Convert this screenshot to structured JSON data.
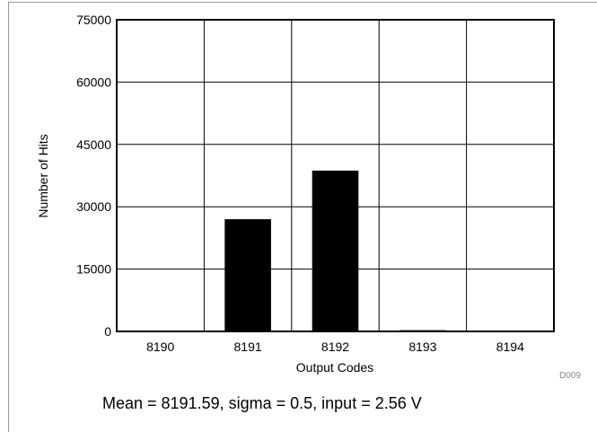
{
  "chart_data": {
    "type": "bar",
    "categories": [
      "8190",
      "8191",
      "8192",
      "8193",
      "8194"
    ],
    "values": [
      120,
      27000,
      38700,
      300,
      120
    ],
    "xlabel": "Output Codes",
    "ylabel": "Number of Hits",
    "ylim": [
      0,
      75000
    ],
    "yticks": [
      "0",
      "15000",
      "30000",
      "45000",
      "60000",
      "75000"
    ],
    "grid": true,
    "bar_color": "#000000"
  },
  "figure_id": "D009",
  "caption": "Mean = 8191.59, sigma = 0.5, input = 2.56 V"
}
